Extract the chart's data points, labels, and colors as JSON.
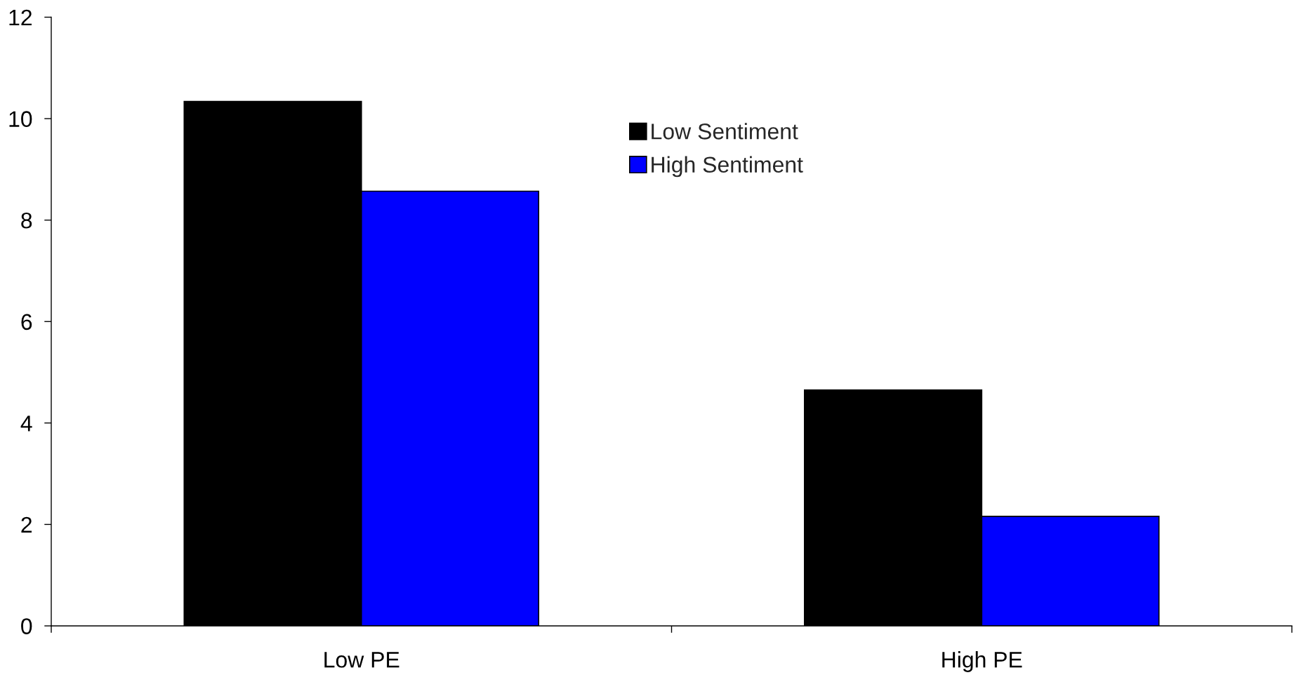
{
  "chart_data": {
    "type": "bar",
    "categories": [
      "Low PE",
      "High PE"
    ],
    "series": [
      {
        "name": "Low Sentiment",
        "color": "#000000",
        "values": [
          10.34,
          4.65
        ]
      },
      {
        "name": "High Sentiment",
        "color": "#0000ff",
        "values": [
          8.57,
          2.16
        ]
      }
    ],
    "ylim": [
      0,
      12
    ],
    "yticks": [
      0,
      2,
      4,
      6,
      8,
      10,
      12
    ],
    "legend": "top"
  }
}
